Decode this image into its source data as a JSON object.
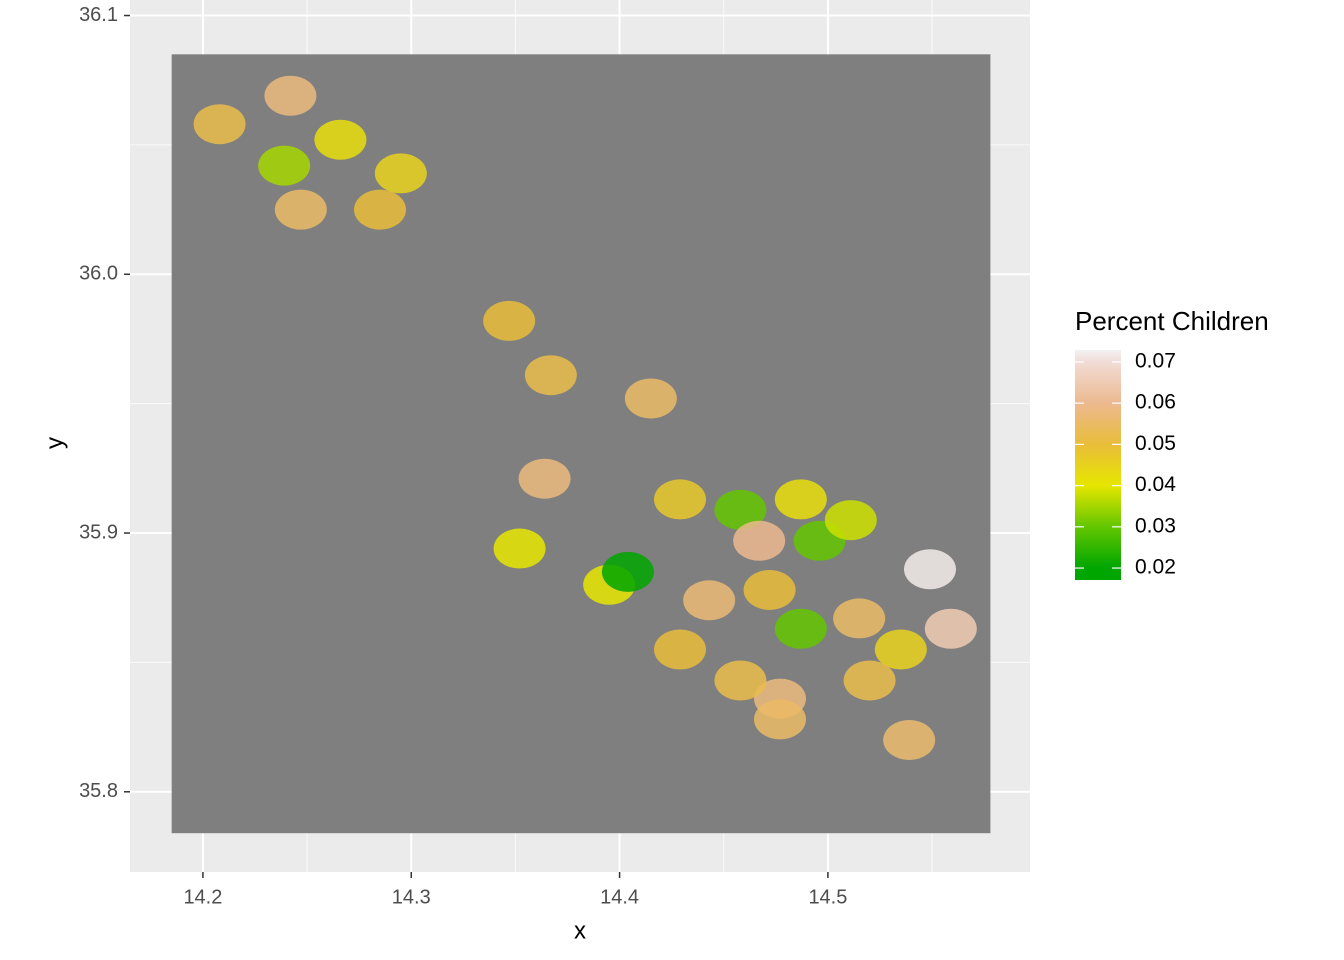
{
  "chart_data": {
    "type": "raster",
    "x_label": "x",
    "y_label": "y",
    "xlim": [
      14.165,
      14.597
    ],
    "ylim": [
      35.769,
      36.106
    ],
    "xticks": [
      14.2,
      14.3,
      14.4,
      14.5
    ],
    "yticks": [
      35.8,
      35.9,
      {
        "value": 36,
        "label": "36.0"
      },
      36.1
    ],
    "xminor": [
      14.25,
      14.35,
      14.45,
      14.55
    ],
    "yminor": [
      35.85,
      35.95,
      36.05
    ],
    "grid": true,
    "extent": [
      14.185,
      14.578,
      35.784,
      36.085
    ],
    "na_color": "#7f7f7f",
    "legend": {
      "title": "Percent Children",
      "limits": [
        0.0171,
        0.0729
      ],
      "breaks": [
        0.02,
        0.03,
        0.04,
        0.05,
        0.06,
        0.07
      ],
      "stops": [
        {
          "value": 0.02,
          "color": "#00a600"
        },
        {
          "value": 0.03,
          "color": "#63c600"
        },
        {
          "value": 0.04,
          "color": "#e6e600"
        },
        {
          "value": 0.05,
          "color": "#e9bd3a"
        },
        {
          "value": 0.06,
          "color": "#ecb98f"
        },
        {
          "value": 0.07,
          "color": "#f1dcd6"
        },
        {
          "value": 0.0729,
          "color": "#f2f2f2"
        }
      ]
    },
    "cells": {
      "x": [
        14.239,
        14.266,
        14.295,
        14.247,
        14.208,
        14.242,
        14.285,
        14.347,
        14.367,
        14.415,
        14.364,
        14.395,
        14.429,
        14.458,
        14.467,
        14.487,
        14.496,
        14.511,
        14.443,
        14.472,
        14.487,
        14.515,
        14.535,
        14.559,
        14.549,
        14.477,
        14.477,
        14.539,
        14.429,
        14.458,
        14.352,
        14.404,
        14.52
      ],
      "y": [
        36.042,
        36.052,
        36.039,
        36.025,
        36.058,
        36.069,
        36.025,
        35.982,
        35.961,
        35.952,
        35.921,
        35.88,
        35.913,
        35.909,
        35.897,
        35.913,
        35.897,
        35.905,
        35.874,
        35.878,
        35.863,
        35.867,
        35.855,
        35.863,
        35.886,
        35.836,
        35.828,
        35.82,
        35.855,
        35.843,
        35.894,
        35.885,
        35.843
      ],
      "values": [
        0.035,
        0.042,
        0.045,
        0.055,
        0.052,
        0.058,
        0.05,
        0.05,
        0.052,
        0.055,
        0.058,
        0.04,
        0.047,
        0.03,
        0.06,
        0.042,
        0.03,
        0.038,
        0.057,
        0.05,
        0.03,
        0.055,
        0.045,
        0.065,
        0.072,
        0.058,
        0.055,
        0.056,
        0.05,
        0.052,
        0.04,
        0.02,
        0.052
      ]
    }
  }
}
